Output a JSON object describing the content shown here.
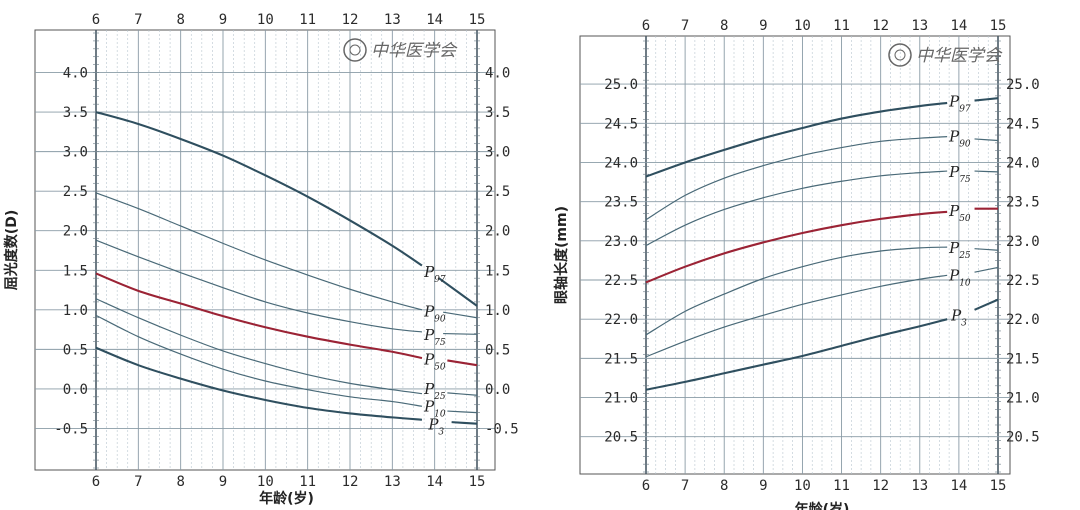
{
  "colors": {
    "median": "#9b2335",
    "curve": "#2f4f5f",
    "curve_thin": "#4a6a78",
    "grid_major": "#8a9ba6",
    "grid_minor": "#b9c6cf",
    "frame": "#555555"
  },
  "watermark": {
    "text": "中华医学会",
    "icon": "society-seal-icon"
  },
  "chart_data": [
    {
      "type": "line",
      "x_ticks": [
        6,
        7,
        8,
        9,
        10,
        11,
        12,
        13,
        14,
        15
      ],
      "y_ticks": [
        -0.5,
        0.0,
        0.5,
        1.0,
        1.5,
        2.0,
        2.5,
        3.0,
        3.5,
        4.0
      ],
      "y_tick_labels": [
        "-0.5",
        "0.0",
        "0.5",
        "1.0",
        "1.5",
        "2.0",
        "2.5",
        "3.0",
        "3.5",
        "4.0"
      ],
      "xlim": [
        6,
        15
      ],
      "ylim": [
        -1.0,
        4.5
      ],
      "ylabel": "屈光度数(D)",
      "xlabel": "年龄(岁)",
      "grid": true,
      "series": [
        {
          "name": "P97",
          "x": [
            6,
            7,
            8,
            9,
            10,
            11,
            12,
            13,
            13.7
          ],
          "values": [
            3.5,
            3.35,
            3.16,
            2.95,
            2.7,
            2.43,
            2.13,
            1.81,
            1.56
          ],
          "tail": [
            [
              14.1,
              1.4
            ],
            [
              15,
              1.05
            ]
          ]
        },
        {
          "name": "P90",
          "x": [
            6,
            7,
            8,
            9,
            10,
            11,
            12,
            13,
            13.7
          ],
          "values": [
            2.48,
            2.28,
            2.06,
            1.84,
            1.63,
            1.44,
            1.26,
            1.1,
            1.0
          ],
          "tail": [
            [
              14.2,
              0.97
            ],
            [
              15,
              0.9
            ]
          ]
        },
        {
          "name": "P75",
          "x": [
            6,
            7,
            8,
            9,
            10,
            11,
            12,
            13,
            13.7
          ],
          "values": [
            1.88,
            1.67,
            1.47,
            1.28,
            1.1,
            0.96,
            0.85,
            0.76,
            0.72
          ],
          "tail": [
            [
              14.2,
              0.7
            ],
            [
              15,
              0.69
            ]
          ]
        },
        {
          "name": "P50",
          "x": [
            6,
            7,
            8,
            9,
            10,
            11,
            12,
            13,
            13.7
          ],
          "values": [
            1.46,
            1.24,
            1.08,
            0.92,
            0.78,
            0.66,
            0.56,
            0.47,
            0.39
          ],
          "tail": [
            [
              14.3,
              0.36
            ],
            [
              15,
              0.3
            ]
          ]
        },
        {
          "name": "P25",
          "x": [
            6,
            7,
            8,
            9,
            10,
            11,
            12,
            13,
            13.7
          ],
          "values": [
            1.14,
            0.9,
            0.68,
            0.48,
            0.32,
            0.18,
            0.07,
            -0.01,
            -0.06
          ],
          "tail": [
            [
              14.3,
              -0.05
            ],
            [
              15,
              -0.08
            ]
          ]
        },
        {
          "name": "P10",
          "x": [
            6,
            7,
            8,
            9,
            10,
            11,
            12,
            13,
            13.7
          ],
          "values": [
            0.93,
            0.66,
            0.44,
            0.25,
            0.1,
            -0.01,
            -0.1,
            -0.16,
            -0.22
          ],
          "tail": [
            [
              14.3,
              -0.28
            ],
            [
              15,
              -0.3
            ]
          ]
        },
        {
          "name": "P3",
          "x": [
            6,
            7,
            8,
            9,
            10,
            11,
            12,
            13,
            13.7
          ],
          "values": [
            0.52,
            0.3,
            0.13,
            -0.02,
            -0.14,
            -0.24,
            -0.31,
            -0.36,
            -0.39
          ],
          "tail": [
            [
              14.4,
              -0.42
            ],
            [
              15,
              -0.44
            ]
          ]
        }
      ],
      "curve_labels": [
        {
          "name": "P",
          "sub": "97",
          "x": 13.75,
          "y": 1.48
        },
        {
          "name": "P",
          "sub": "90",
          "x": 13.75,
          "y": 0.98
        },
        {
          "name": "P",
          "sub": "75",
          "x": 13.75,
          "y": 0.68
        },
        {
          "name": "P",
          "sub": "50",
          "x": 13.75,
          "y": 0.37
        },
        {
          "name": "P",
          "sub": "25",
          "x": 13.75,
          "y": 0.0
        },
        {
          "name": "P",
          "sub": "10",
          "x": 13.75,
          "y": -0.22
        },
        {
          "name": "P",
          "sub": "3",
          "x": 13.85,
          "y": -0.45
        }
      ]
    },
    {
      "type": "line",
      "x_ticks": [
        6,
        7,
        8,
        9,
        10,
        11,
        12,
        13,
        14,
        15
      ],
      "y_ticks": [
        20.5,
        21.0,
        21.5,
        22.0,
        22.5,
        23.0,
        23.5,
        24.0,
        24.5,
        25.0
      ],
      "y_tick_labels": [
        "20.5",
        "21.0",
        "21.5",
        "22.0",
        "22.5",
        "23.0",
        "23.5",
        "24.0",
        "24.5",
        "25.0"
      ],
      "xlim": [
        6,
        15
      ],
      "ylim": [
        20.05,
        25.55
      ],
      "ylabel": "眼轴长度(mm)",
      "xlabel": "年龄(岁)",
      "grid": true,
      "series": [
        {
          "name": "P97",
          "x": [
            6,
            7,
            8,
            9,
            10,
            11,
            12,
            13,
            13.7
          ],
          "values": [
            23.82,
            24.0,
            24.16,
            24.31,
            24.44,
            24.56,
            24.65,
            24.72,
            24.76
          ],
          "tail": [
            [
              14.4,
              24.79
            ],
            [
              15,
              24.82
            ]
          ]
        },
        {
          "name": "P90",
          "x": [
            6,
            7,
            8,
            9,
            10,
            11,
            12,
            13,
            13.7
          ],
          "values": [
            23.27,
            23.58,
            23.8,
            23.96,
            24.09,
            24.19,
            24.27,
            24.31,
            24.33
          ],
          "tail": [
            [
              14.4,
              24.3
            ],
            [
              15,
              24.28
            ]
          ]
        },
        {
          "name": "P75",
          "x": [
            6,
            7,
            8,
            9,
            10,
            11,
            12,
            13,
            13.7
          ],
          "values": [
            22.94,
            23.2,
            23.4,
            23.55,
            23.67,
            23.76,
            23.83,
            23.87,
            23.89
          ],
          "tail": [
            [
              14.4,
              23.89
            ],
            [
              15,
              23.88
            ]
          ]
        },
        {
          "name": "P50",
          "x": [
            6,
            7,
            8,
            9,
            10,
            11,
            12,
            13,
            13.7
          ],
          "values": [
            22.47,
            22.67,
            22.84,
            22.98,
            23.1,
            23.2,
            23.28,
            23.34,
            23.37
          ],
          "tail": [
            [
              14.4,
              23.41
            ],
            [
              15,
              23.41
            ]
          ]
        },
        {
          "name": "P25",
          "x": [
            6,
            7,
            8,
            9,
            10,
            11,
            12,
            13,
            13.7
          ],
          "values": [
            21.8,
            22.1,
            22.32,
            22.52,
            22.67,
            22.79,
            22.87,
            22.91,
            22.92
          ],
          "tail": [
            [
              14.4,
              22.9
            ],
            [
              15,
              22.88
            ]
          ]
        },
        {
          "name": "P10",
          "x": [
            6,
            7,
            8,
            9,
            10,
            11,
            12,
            13,
            13.7
          ],
          "values": [
            21.52,
            21.72,
            21.9,
            22.05,
            22.19,
            22.31,
            22.42,
            22.51,
            22.56
          ],
          "tail": [
            [
              14.4,
              22.6
            ],
            [
              15,
              22.66
            ]
          ]
        },
        {
          "name": "P3",
          "x": [
            6,
            7,
            8,
            9,
            10,
            11,
            12,
            13,
            13.7
          ],
          "values": [
            21.1,
            21.2,
            21.31,
            21.42,
            21.53,
            21.66,
            21.79,
            21.91,
            22.0
          ],
          "tail": [
            [
              14.4,
              22.12
            ],
            [
              15,
              22.25
            ]
          ]
        }
      ],
      "curve_labels": [
        {
          "name": "P",
          "sub": "97",
          "x": 13.75,
          "y": 24.78
        },
        {
          "name": "P",
          "sub": "90",
          "x": 13.75,
          "y": 24.33
        },
        {
          "name": "P",
          "sub": "75",
          "x": 13.75,
          "y": 23.88
        },
        {
          "name": "P",
          "sub": "50",
          "x": 13.75,
          "y": 23.38
        },
        {
          "name": "P",
          "sub": "25",
          "x": 13.75,
          "y": 22.91
        },
        {
          "name": "P",
          "sub": "10",
          "x": 13.75,
          "y": 22.56
        },
        {
          "name": "P",
          "sub": "3",
          "x": 13.8,
          "y": 22.05
        }
      ]
    }
  ]
}
